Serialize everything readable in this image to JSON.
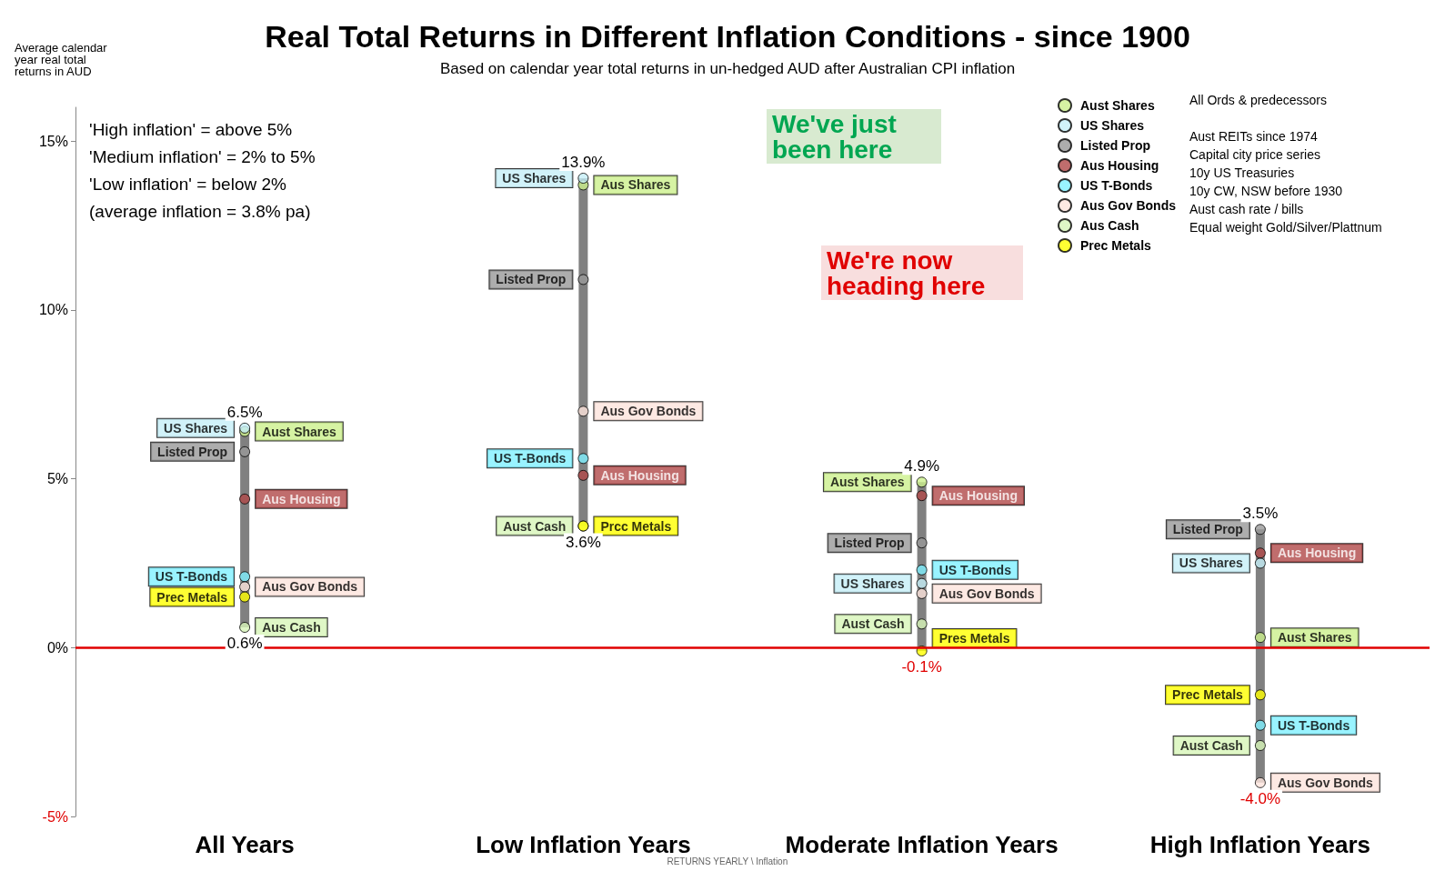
{
  "chart_data": {
    "type": "scatter",
    "title": "Real Total Returns in Different Inflation Conditions - since 1900",
    "subtitle": "Based on calendar year total returns in un-hedged AUD after Australian CPI inflation",
    "ylabel": "Average calendar year real total returns in AUD",
    "categories": [
      "All Years",
      "Low Inflation Years",
      "Moderate Inflation Years",
      "High Inflation Years"
    ],
    "series": [
      {
        "type": "bar",
        "color": "#808080",
        "base": [
          0.6,
          3.6,
          -0.1,
          -4.0
        ],
        "values": [
          5.9,
          10.3,
          5.0,
          7.5
        ]
      },
      {
        "name": "Aust Shares",
        "color": "#ccf08c",
        "values": [
          6.4,
          13.7,
          4.9,
          0.3
        ],
        "value_labels": [
          "Aust Shares",
          "Aus Shares",
          "Aust Shares",
          "Aust Shares"
        ]
      },
      {
        "name": "US Shares",
        "color": "#c5eff8",
        "values": [
          6.5,
          13.9,
          1.9,
          2.5
        ],
        "value_labels": [
          "US Shares",
          "US Shares",
          "US Shares",
          "US Shares"
        ]
      },
      {
        "name": "Listed Prop",
        "color": "#999999",
        "values": [
          5.8,
          10.9,
          3.1,
          3.5
        ],
        "value_labels": [
          "Listed Prop",
          "Listed Prop",
          "Listed Prop",
          "Listed Prop"
        ]
      },
      {
        "name": "Aus Housing",
        "color": "#b04848",
        "values": [
          4.4,
          5.1,
          4.5,
          2.8
        ],
        "value_labels": [
          "Aus Housing",
          "Aus Housing",
          "Aus Housing",
          "Aus Housing"
        ]
      },
      {
        "name": "US T-Bonds",
        "color": "#80f0ff",
        "values": [
          2.1,
          5.6,
          2.3,
          -2.3
        ],
        "value_labels": [
          "US T-Bonds",
          "US T-Bonds",
          "US T-Bonds",
          "US T-Bonds"
        ]
      },
      {
        "name": "Aus Gov Bonds",
        "color": "#fde4dc",
        "values": [
          1.8,
          7.0,
          1.6,
          -4.0
        ],
        "value_labels": [
          "Aus Gov Bonds",
          "Aus Gov Bonds",
          "Aus Gov Bonds",
          "Aus Gov Bonds"
        ]
      },
      {
        "name": "Aus Cash",
        "color": "#d7f5b8",
        "values": [
          0.6,
          3.6,
          0.7,
          -2.9
        ],
        "value_labels": [
          "Aus Cash",
          "Aust Cash",
          "Aust Cash",
          "Aust Cash"
        ]
      },
      {
        "name": "Prec Metals",
        "color": "#ffff00",
        "values": [
          1.5,
          3.6,
          -0.1,
          -1.4
        ],
        "value_labels": [
          "Prec Metals",
          "Prcc Metals",
          "Pres Metals",
          "Prec Metals"
        ]
      }
    ],
    "ylim": [
      -5,
      16
    ],
    "yticks": [
      {
        "value": -5,
        "label": "-5%"
      },
      {
        "value": 0,
        "label": "0%"
      },
      {
        "value": 5,
        "label": "5%"
      },
      {
        "value": 10,
        "label": "10%"
      },
      {
        "value": 15,
        "label": "15%"
      }
    ],
    "grid": false,
    "legend": "top right",
    "marker": "circle",
    "ref_lines": [
      {
        "axis": "y",
        "value": 0,
        "color": "#e00000",
        "line_style": "solid"
      }
    ],
    "annotations": [
      {
        "text": "6.5%",
        "x": "All Years",
        "y": 6.5
      },
      {
        "text": "0.6%",
        "x": "All Years",
        "y": 0.6
      },
      {
        "text": "13.9%",
        "x": "Low Inflation Years",
        "y": 13.9
      },
      {
        "text": "3.6%",
        "x": "Low Inflation Years",
        "y": 3.6
      },
      {
        "text": "4.9%",
        "x": "Moderate Inflation Years",
        "y": 4.9
      },
      {
        "text": "-0.1%",
        "x": "Moderate Inflation Years",
        "y": -0.1
      },
      {
        "text": "3.5%",
        "x": "High Inflation Years",
        "y": 3.5
      },
      {
        "text": "-4.0%",
        "x": "High Inflation Years",
        "y": -4.0
      },
      "'High inflation' = above 5%",
      "'Medium inflation' = 2% to 5%",
      "'Low inflation' = below 2%",
      "(average inflation = 3.8% pa)",
      "We've just been here",
      "We're now heading here",
      "All Ords & predecessors",
      "Aust REITs since 1974",
      "Capital city price series",
      "10y US Treasuries",
      "10y CW, NSW before 1930",
      "Aust cash rate / bills",
      "Equal weight Gold/Silver/Plattnum",
      "RETURNS YEARLY \\ Inflation"
    ]
  }
}
